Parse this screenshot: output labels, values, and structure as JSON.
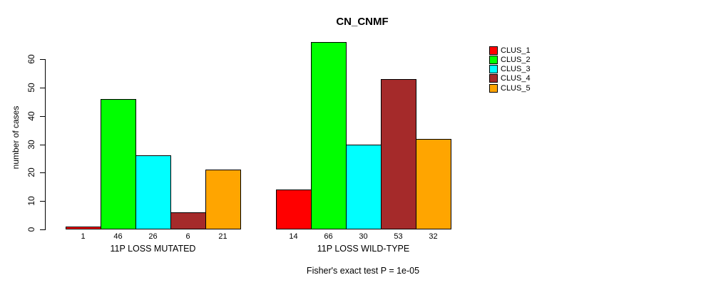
{
  "chart_data": {
    "type": "bar",
    "title": "CN_CNMF",
    "ylabel": "number of cases",
    "xlabel": "",
    "ylim": [
      0,
      66
    ],
    "yticks": [
      0,
      10,
      20,
      30,
      40,
      50,
      60
    ],
    "grid": false,
    "legend_position": "right",
    "bar_value_labels_shown": true,
    "groups": [
      {
        "label": "11P LOSS MUTATED",
        "values": [
          1,
          46,
          26,
          6,
          21
        ]
      },
      {
        "label": "11P LOSS WILD-TYPE",
        "values": [
          14,
          66,
          30,
          53,
          32
        ]
      }
    ],
    "series": [
      {
        "name": "CLUS_1",
        "color": "#ff0000"
      },
      {
        "name": "CLUS_2",
        "color": "#00ff00"
      },
      {
        "name": "CLUS_3",
        "color": "#00ffff"
      },
      {
        "name": "CLUS_4",
        "color": "#a52a2a"
      },
      {
        "name": "CLUS_5",
        "color": "#ffa500"
      }
    ],
    "annotation": "Fisher's exact test P = 1e-05"
  }
}
